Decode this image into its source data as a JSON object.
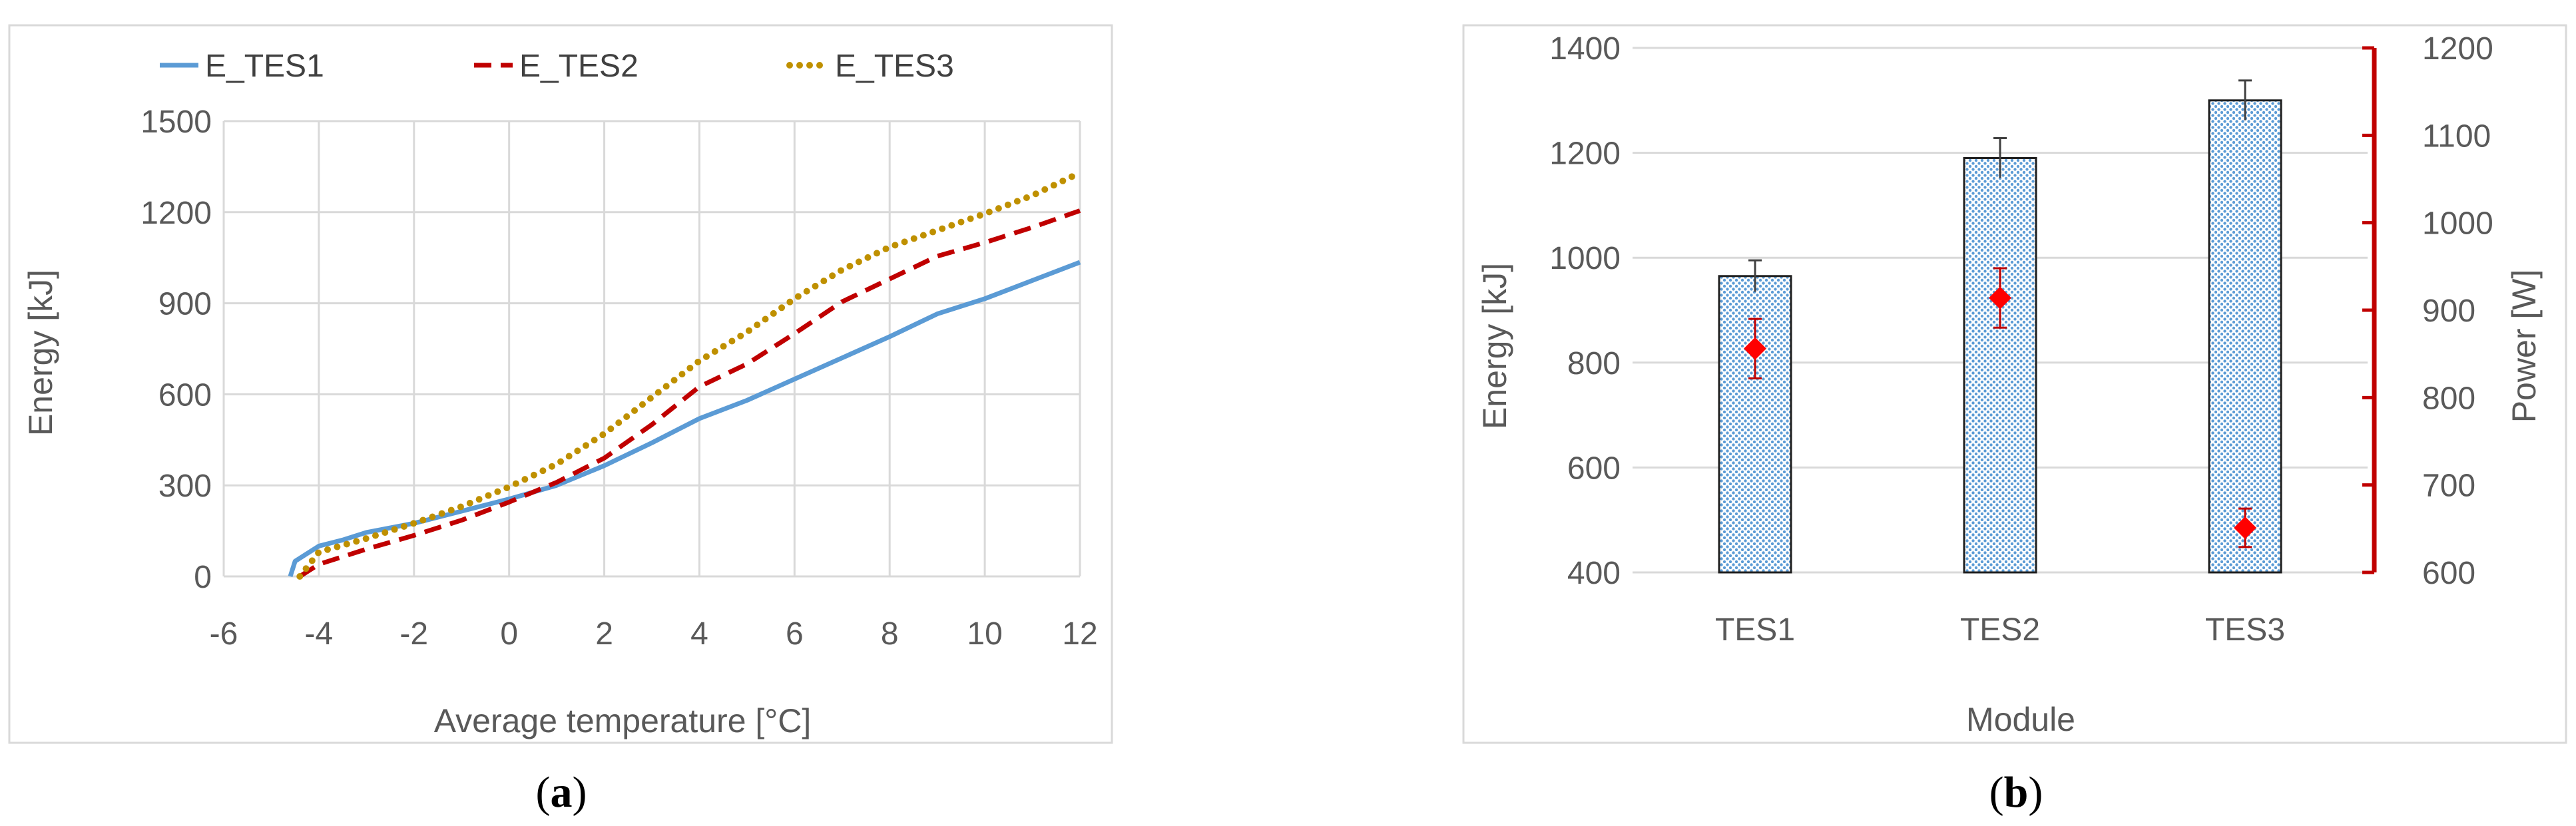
{
  "chart_data": [
    {
      "panel_label": "a",
      "type": "line",
      "title": "",
      "xlabel": "Average temperature [°C]",
      "ylabel": "Energy [kJ]",
      "xlim": [
        -6,
        12
      ],
      "ylim": [
        0,
        1500
      ],
      "xticks": [
        -6,
        -4,
        -2,
        0,
        2,
        4,
        6,
        8,
        10,
        12
      ],
      "yticks": [
        0,
        300,
        600,
        900,
        1200,
        1500
      ],
      "grid": true,
      "legend_position": "top",
      "series": [
        {
          "name": "E_TES1",
          "color": "#5b9bd5",
          "style": "solid",
          "x": [
            -4.6,
            -4.5,
            -4.3,
            -4.0,
            -3.5,
            -3.0,
            -2.0,
            -1.0,
            0.0,
            1.0,
            2.0,
            3.0,
            4.0,
            5.0,
            6.0,
            7.0,
            8.0,
            9.0,
            10.0,
            11.0,
            12.0
          ],
          "y": [
            0,
            50,
            70,
            100,
            120,
            145,
            175,
            215,
            255,
            300,
            365,
            440,
            520,
            580,
            650,
            720,
            790,
            865,
            915,
            975,
            1035
          ]
        },
        {
          "name": "E_TES2",
          "color": "#c00000",
          "style": "dashed",
          "x": [
            -4.4,
            -4.0,
            -3.0,
            -2.0,
            -1.0,
            0.0,
            1.0,
            2.0,
            3.0,
            4.0,
            5.0,
            6.0,
            7.0,
            8.0,
            9.0,
            10.0,
            11.0,
            12.0
          ],
          "y": [
            0,
            40,
            90,
            135,
            185,
            245,
            310,
            390,
            500,
            625,
            700,
            800,
            905,
            980,
            1055,
            1100,
            1150,
            1205
          ]
        },
        {
          "name": "E_TES3",
          "color": "#bf9000",
          "style": "dotted",
          "x": [
            -4.4,
            -4.0,
            -3.0,
            -2.0,
            -1.0,
            0.0,
            1.0,
            2.0,
            3.0,
            4.0,
            5.0,
            6.0,
            7.0,
            8.0,
            9.0,
            10.0,
            11.0,
            12.0
          ],
          "y": [
            0,
            80,
            125,
            175,
            230,
            295,
            370,
            470,
            590,
            710,
            805,
            915,
            1010,
            1085,
            1140,
            1195,
            1255,
            1330
          ]
        }
      ]
    },
    {
      "panel_label": "b",
      "type": "bar",
      "title": "",
      "xlabel": "Module",
      "ylabel": "Energy [kJ]",
      "y2label": "Power [W]",
      "categories": [
        "TES1",
        "TES2",
        "TES3"
      ],
      "ylim": [
        400,
        1400
      ],
      "yticks": [
        400,
        600,
        800,
        1000,
        1200,
        1400
      ],
      "y2lim": [
        600,
        1200
      ],
      "y2ticks": [
        600,
        700,
        800,
        900,
        1000,
        1100,
        1200
      ],
      "grid": true,
      "series": [
        {
          "kind": "bar",
          "axis": "left",
          "color": "#5b9bd5",
          "values": [
            965,
            1190,
            1300
          ],
          "errors": [
            30,
            38,
            38
          ]
        },
        {
          "kind": "marker",
          "axis": "right",
          "color": "#ff0000",
          "values": [
            856,
            914,
            651
          ],
          "errors": [
            34,
            34,
            22
          ]
        }
      ]
    }
  ]
}
